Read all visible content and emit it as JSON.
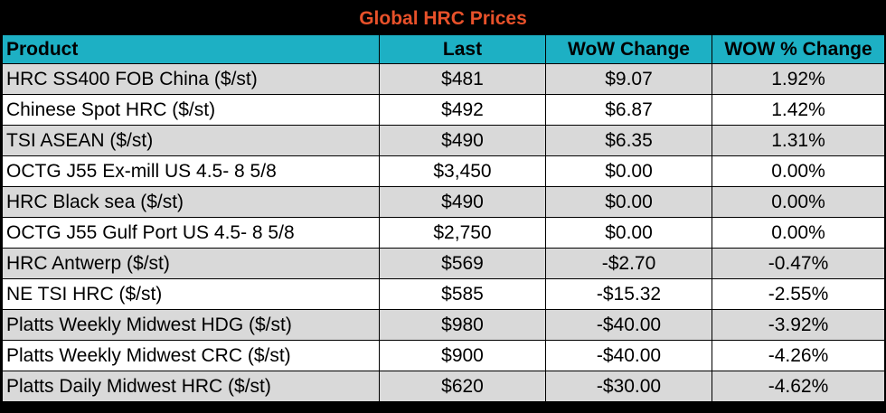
{
  "table": {
    "title": "Global HRC Prices",
    "headers": {
      "product": "Product",
      "last": "Last",
      "wow_change": "WoW Change",
      "wow_pct_change": "WOW % Change"
    },
    "rows": [
      {
        "product": "HRC SS400 FOB China ($/st)",
        "last": "$481",
        "wow_change": "$9.07",
        "wow_pct_change": "1.92%"
      },
      {
        "product": "Chinese Spot HRC ($/st)",
        "last": "$492",
        "wow_change": "$6.87",
        "wow_pct_change": "1.42%"
      },
      {
        "product": "TSI ASEAN ($/st)",
        "last": "$490",
        "wow_change": "$6.35",
        "wow_pct_change": "1.31%"
      },
      {
        "product": "OCTG J55 Ex-mill US 4.5- 8 5/8",
        "last": "$3,450",
        "wow_change": "$0.00",
        "wow_pct_change": "0.00%"
      },
      {
        "product": "HRC Black sea ($/st)",
        "last": "$490",
        "wow_change": "$0.00",
        "wow_pct_change": "0.00%"
      },
      {
        "product": "OCTG J55 Gulf Port US 4.5- 8 5/8",
        "last": "$2,750",
        "wow_change": "$0.00",
        "wow_pct_change": "0.00%"
      },
      {
        "product": "HRC Antwerp ($/st)",
        "last": "$569",
        "wow_change": "-$2.70",
        "wow_pct_change": "-0.47%"
      },
      {
        "product": "NE TSI HRC ($/st)",
        "last": "$585",
        "wow_change": "-$15.32",
        "wow_pct_change": "-2.55%"
      },
      {
        "product": "Platts Weekly Midwest HDG ($/st)",
        "last": "$980",
        "wow_change": "-$40.00",
        "wow_pct_change": "-3.92%"
      },
      {
        "product": "Platts Weekly Midwest CRC ($/st)",
        "last": "$900",
        "wow_change": "-$40.00",
        "wow_pct_change": "-4.26%"
      },
      {
        "product": "Platts Daily Midwest HRC ($/st)",
        "last": "$620",
        "wow_change": "-$30.00",
        "wow_pct_change": "-4.62%"
      }
    ]
  },
  "colors": {
    "title_text": "#e8512a",
    "title_background": "#000000",
    "header_background": "#1db0c4",
    "row_shaded": "#d9d9d9",
    "row_plain": "#ffffff",
    "grid_lines": "#000000"
  }
}
